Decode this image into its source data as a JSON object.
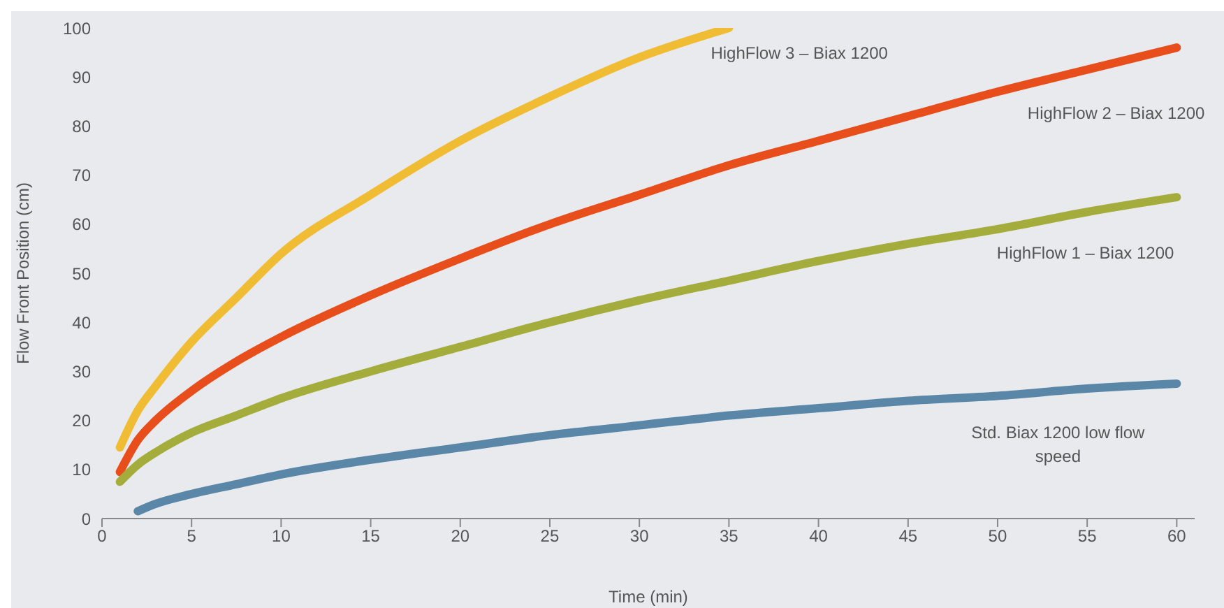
{
  "chart_data": {
    "type": "line",
    "xlabel": "Time (min)",
    "ylabel": "Flow Front Position (cm)",
    "xlim": [
      0,
      61
    ],
    "xticks": [
      0,
      5,
      10,
      15,
      20,
      25,
      30,
      35,
      40,
      45,
      50,
      55,
      60
    ],
    "ylim": [
      0,
      100
    ],
    "yticks": [
      0,
      10,
      20,
      30,
      40,
      50,
      60,
      70,
      80,
      90,
      100
    ],
    "marker": "none",
    "series": [
      {
        "name": "HighFlow 3 – Biax 1200",
        "color": "#f0bc34",
        "x": [
          1,
          2,
          3,
          5,
          7.5,
          10,
          15,
          20,
          25,
          30,
          35
        ],
        "values": [
          14.5,
          22,
          27,
          36,
          45,
          54,
          66,
          77,
          86,
          94,
          100
        ]
      },
      {
        "name": "HighFlow 2 – Biax 1200",
        "color": "#e84e1b",
        "x": [
          1,
          2,
          3,
          5,
          7.5,
          10,
          15,
          20,
          25,
          30,
          35,
          40,
          45,
          50,
          55,
          60
        ],
        "values": [
          9.5,
          16,
          20,
          26,
          32,
          37,
          45.5,
          53,
          60,
          66,
          72,
          77,
          82,
          87,
          91.5,
          96
        ]
      },
      {
        "name": "HighFlow 1 – Biax 1200",
        "color": "#a4ac3c",
        "x": [
          1,
          2,
          3,
          5,
          7.5,
          10,
          15,
          20,
          25,
          30,
          35,
          40,
          45,
          50,
          55,
          60
        ],
        "values": [
          7.5,
          11,
          13.5,
          17.5,
          21,
          24.5,
          30,
          35,
          40,
          44.5,
          48.5,
          52.5,
          56,
          59,
          62.5,
          65.5
        ]
      },
      {
        "name": "Std. Biax 1200 low flow speed",
        "color": "#5a87a8",
        "x": [
          2,
          3,
          5,
          7.5,
          10,
          15,
          20,
          25,
          30,
          35,
          40,
          45,
          50,
          55,
          60
        ],
        "values": [
          1.5,
          3,
          5,
          7,
          9,
          12,
          14.5,
          17,
          19,
          21,
          22.5,
          24,
          25,
          26.5,
          27.5
        ]
      }
    ]
  }
}
